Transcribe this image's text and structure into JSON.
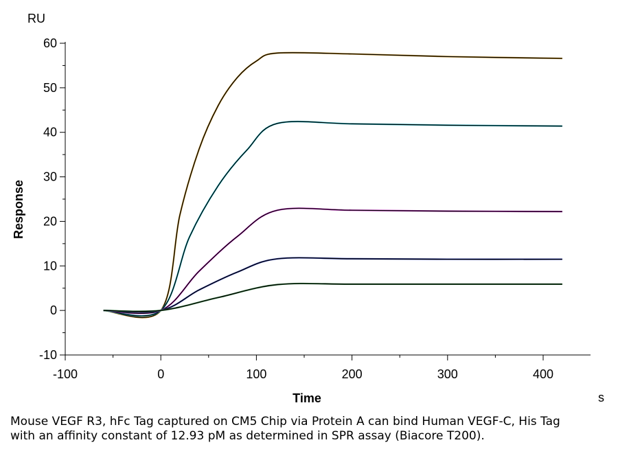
{
  "chart_data": {
    "type": "line",
    "ylabel": "Response",
    "xlabel": "Time",
    "y_unit": "RU",
    "x_unit": "s",
    "xlim": [
      -100,
      450
    ],
    "ylim": [
      -10,
      60
    ],
    "xticks": [
      -100,
      0,
      100,
      200,
      300,
      400
    ],
    "yticks": [
      -10,
      0,
      10,
      20,
      30,
      40,
      50,
      60
    ],
    "grid": false,
    "series": [
      {
        "color": "#c08a1a",
        "fit_color": "#000000",
        "points": [
          [
            -60,
            0
          ],
          [
            0,
            0
          ],
          [
            20,
            21.5
          ],
          [
            40,
            36.2
          ],
          [
            60,
            46.0
          ],
          [
            80,
            52.3
          ],
          [
            100,
            56.0
          ],
          [
            122,
            57.8
          ],
          [
            200,
            57.6
          ],
          [
            300,
            57.0
          ],
          [
            420,
            56.6
          ]
        ]
      },
      {
        "color": "#22b8c8",
        "fit_color": "#000000",
        "points": [
          [
            -60,
            0
          ],
          [
            0,
            0
          ],
          [
            30,
            16.5
          ],
          [
            60,
            28.0
          ],
          [
            90,
            36.0
          ],
          [
            122,
            42.0
          ],
          [
            200,
            41.9
          ],
          [
            300,
            41.6
          ],
          [
            420,
            41.4
          ]
        ]
      },
      {
        "color": "#c02ec0",
        "fit_color": "#000000",
        "points": [
          [
            -60,
            0
          ],
          [
            0,
            0
          ],
          [
            40,
            8.8
          ],
          [
            80,
            16.6
          ],
          [
            122,
            22.5
          ],
          [
            200,
            22.5
          ],
          [
            300,
            22.3
          ],
          [
            420,
            22.2
          ]
        ]
      },
      {
        "color": "#2a3aa8",
        "fit_color": "#000000",
        "points": [
          [
            -60,
            0
          ],
          [
            0,
            0
          ],
          [
            40,
            4.6
          ],
          [
            80,
            8.6
          ],
          [
            122,
            11.6
          ],
          [
            200,
            11.6
          ],
          [
            300,
            11.5
          ],
          [
            420,
            11.5
          ]
        ]
      },
      {
        "color": "#2e7a3a",
        "fit_color": "#000000",
        "points": [
          [
            -60,
            0
          ],
          [
            0,
            0
          ],
          [
            60,
            2.9
          ],
          [
            122,
            5.8
          ],
          [
            200,
            5.9
          ],
          [
            300,
            5.9
          ],
          [
            420,
            5.9
          ]
        ]
      }
    ]
  },
  "caption": "Mouse VEGF R3, hFc Tag captured on CM5 Chip via Protein A can bind Human VEGF-C, His Tag with an affinity constant of 12.93 pM as determined in SPR assay (Biacore T200)."
}
